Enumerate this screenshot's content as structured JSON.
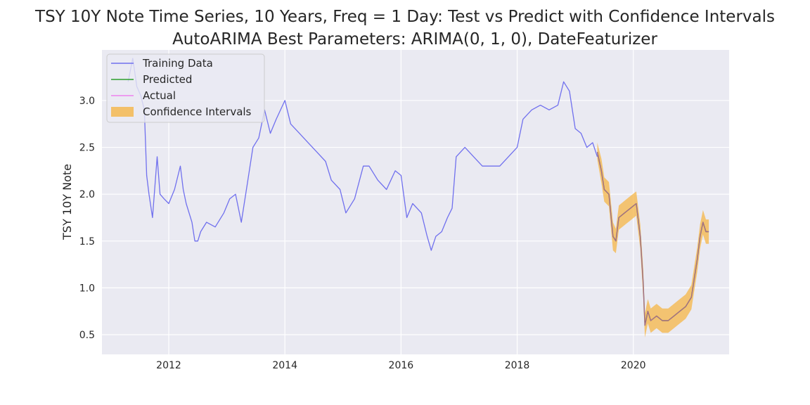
{
  "chart_data": {
    "type": "line",
    "title": "TSY 10Y Note Time Series, 10 Years, Freq = 1 Day: Test vs Predict with Confidence Intervals",
    "subtitle": "AutoARIMA Best Parameters: ARIMA(0, 1, 0), DateFeaturizer",
    "xlabel": "",
    "ylabel": "TSY 10Y Note",
    "xlim": [
      2010.85,
      2021.65
    ],
    "ylim": [
      0.29,
      3.54
    ],
    "x_ticks": [
      "2012",
      "2014",
      "2016",
      "2018",
      "2020"
    ],
    "y_ticks": [
      "0.5",
      "1.0",
      "1.5",
      "2.0",
      "2.5",
      "3.0"
    ],
    "grid": true,
    "legend_position": "top-left",
    "colors": {
      "background": "#eaeaf2",
      "grid": "#ffffff",
      "training": "#7070ee",
      "predicted": "#2ca02c",
      "actual": "#ee82ee",
      "confidence": "#f5b546",
      "test_overlap": "#7a6458"
    },
    "series": [
      {
        "name": "Training Data",
        "key": "training",
        "x": [
          2011.3,
          2011.38,
          2011.45,
          2011.52,
          2011.58,
          2011.62,
          2011.66,
          2011.72,
          2011.8,
          2011.85,
          2011.92,
          2012.0,
          2012.1,
          2012.2,
          2012.25,
          2012.3,
          2012.4,
          2012.45,
          2012.5,
          2012.55,
          2012.65,
          2012.8,
          2012.95,
          2013.05,
          2013.15,
          2013.25,
          2013.35,
          2013.45,
          2013.55,
          2013.65,
          2013.75,
          2013.85,
          2014.0,
          2014.1,
          2014.25,
          2014.4,
          2014.55,
          2014.7,
          2014.8,
          2014.95,
          2015.05,
          2015.2,
          2015.35,
          2015.45,
          2015.6,
          2015.75,
          2015.9,
          2016.0,
          2016.1,
          2016.2,
          2016.35,
          2016.45,
          2016.52,
          2016.6,
          2016.7,
          2016.8,
          2016.88,
          2016.95,
          2017.1,
          2017.25,
          2017.4,
          2017.55,
          2017.7,
          2017.85,
          2018.0,
          2018.1,
          2018.25,
          2018.4,
          2018.55,
          2018.7,
          2018.8,
          2018.9,
          2019.0,
          2019.1,
          2019.2,
          2019.3,
          2019.38
        ],
        "values": [
          3.2,
          3.45,
          3.15,
          3.05,
          2.9,
          2.2,
          2.0,
          1.75,
          2.4,
          2.0,
          1.95,
          1.9,
          2.05,
          2.3,
          2.05,
          1.9,
          1.7,
          1.5,
          1.5,
          1.6,
          1.7,
          1.65,
          1.8,
          1.95,
          2.0,
          1.7,
          2.1,
          2.5,
          2.6,
          2.9,
          2.65,
          2.8,
          3.0,
          2.75,
          2.65,
          2.55,
          2.45,
          2.35,
          2.15,
          2.05,
          1.8,
          1.95,
          2.3,
          2.3,
          2.15,
          2.05,
          2.25,
          2.2,
          1.75,
          1.9,
          1.8,
          1.55,
          1.4,
          1.55,
          1.6,
          1.75,
          1.85,
          2.4,
          2.5,
          2.4,
          2.3,
          2.3,
          2.3,
          2.4,
          2.5,
          2.8,
          2.9,
          2.95,
          2.9,
          2.95,
          3.2,
          3.1,
          2.7,
          2.65,
          2.5,
          2.55,
          2.4
        ]
      },
      {
        "name": "Predicted",
        "key": "predicted",
        "x": [
          2019.38,
          2019.45,
          2019.5,
          2019.58,
          2019.65,
          2019.7,
          2019.75,
          2019.85,
          2019.95,
          2020.05,
          2020.12,
          2020.17,
          2020.2,
          2020.25,
          2020.3,
          2020.4,
          2020.5,
          2020.6,
          2020.7,
          2020.8,
          2020.9,
          2021.0,
          2021.05,
          2021.1,
          2021.15,
          2021.2,
          2021.25,
          2021.3
        ],
        "values": [
          2.45,
          2.25,
          2.05,
          2.0,
          1.55,
          1.5,
          1.75,
          1.8,
          1.85,
          1.9,
          1.55,
          1.05,
          0.6,
          0.75,
          0.65,
          0.7,
          0.65,
          0.65,
          0.7,
          0.75,
          0.8,
          0.9,
          1.1,
          1.3,
          1.55,
          1.7,
          1.6,
          1.6
        ]
      },
      {
        "name": "Actual",
        "key": "actual",
        "x": [
          2019.38,
          2019.45,
          2019.5,
          2019.58,
          2019.65,
          2019.7,
          2019.75,
          2019.85,
          2019.95,
          2020.05,
          2020.12,
          2020.17,
          2020.2,
          2020.25,
          2020.3,
          2020.4,
          2020.5,
          2020.6,
          2020.7,
          2020.8,
          2020.9,
          2021.0,
          2021.05,
          2021.1,
          2021.15,
          2021.2,
          2021.25,
          2021.3
        ],
        "values": [
          2.45,
          2.25,
          2.05,
          2.0,
          1.55,
          1.5,
          1.75,
          1.8,
          1.85,
          1.9,
          1.55,
          1.05,
          0.6,
          0.75,
          0.65,
          0.7,
          0.65,
          0.65,
          0.7,
          0.75,
          0.8,
          0.9,
          1.1,
          1.3,
          1.55,
          1.7,
          1.6,
          1.6
        ]
      }
    ],
    "confidence_intervals": {
      "name": "Confidence Intervals",
      "x": [
        2019.38,
        2019.45,
        2019.5,
        2019.58,
        2019.65,
        2019.7,
        2019.75,
        2019.85,
        2019.95,
        2020.05,
        2020.12,
        2020.17,
        2020.2,
        2020.25,
        2020.3,
        2020.4,
        2020.5,
        2020.6,
        2020.7,
        2020.8,
        2020.9,
        2021.0,
        2021.05,
        2021.1,
        2021.15,
        2021.2,
        2021.25,
        2021.3
      ],
      "lower": [
        2.37,
        2.12,
        1.92,
        1.87,
        1.4,
        1.37,
        1.62,
        1.67,
        1.72,
        1.77,
        1.42,
        0.9,
        0.47,
        0.62,
        0.52,
        0.57,
        0.52,
        0.52,
        0.57,
        0.62,
        0.67,
        0.77,
        0.97,
        1.17,
        1.42,
        1.57,
        1.47,
        1.47
      ],
      "upper": [
        2.55,
        2.38,
        2.18,
        2.13,
        1.7,
        1.63,
        1.88,
        1.93,
        1.98,
        2.03,
        1.68,
        1.2,
        0.73,
        0.88,
        0.78,
        0.83,
        0.78,
        0.78,
        0.83,
        0.88,
        0.93,
        1.03,
        1.23,
        1.43,
        1.68,
        1.83,
        1.73,
        1.73
      ]
    }
  }
}
